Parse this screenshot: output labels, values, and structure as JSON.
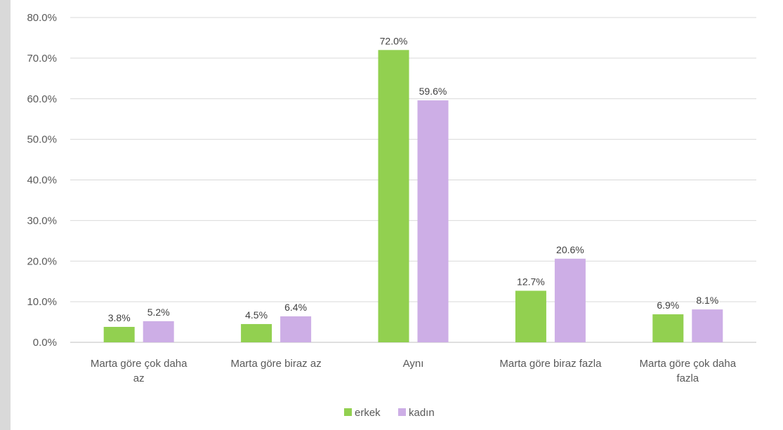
{
  "chart_data": {
    "type": "bar",
    "categories": [
      [
        "Marta göre çok daha",
        "az"
      ],
      [
        "Marta göre biraz az"
      ],
      [
        "Aynı"
      ],
      [
        "Marta göre biraz fazla"
      ],
      [
        "Marta göre çok daha",
        "fazla"
      ]
    ],
    "series": [
      {
        "name": "erkek",
        "color": "#92d050",
        "values": [
          3.8,
          4.5,
          72.0,
          12.7,
          6.9
        ],
        "labels": [
          "3.8%",
          "4.5%",
          "72.0%",
          "12.7%",
          "6.9%"
        ]
      },
      {
        "name": "kadın",
        "color": "#cdaee6",
        "values": [
          5.2,
          6.4,
          59.6,
          20.6,
          8.1
        ],
        "labels": [
          "5.2%",
          "6.4%",
          "59.6%",
          "20.6%",
          "8.1%"
        ]
      }
    ],
    "y_ticks": [
      "0.0%",
      "10.0%",
      "20.0%",
      "30.0%",
      "40.0%",
      "50.0%",
      "60.0%",
      "70.0%",
      "80.0%"
    ],
    "ylim": [
      0,
      80
    ],
    "grid": true,
    "legend_position": "bottom"
  }
}
